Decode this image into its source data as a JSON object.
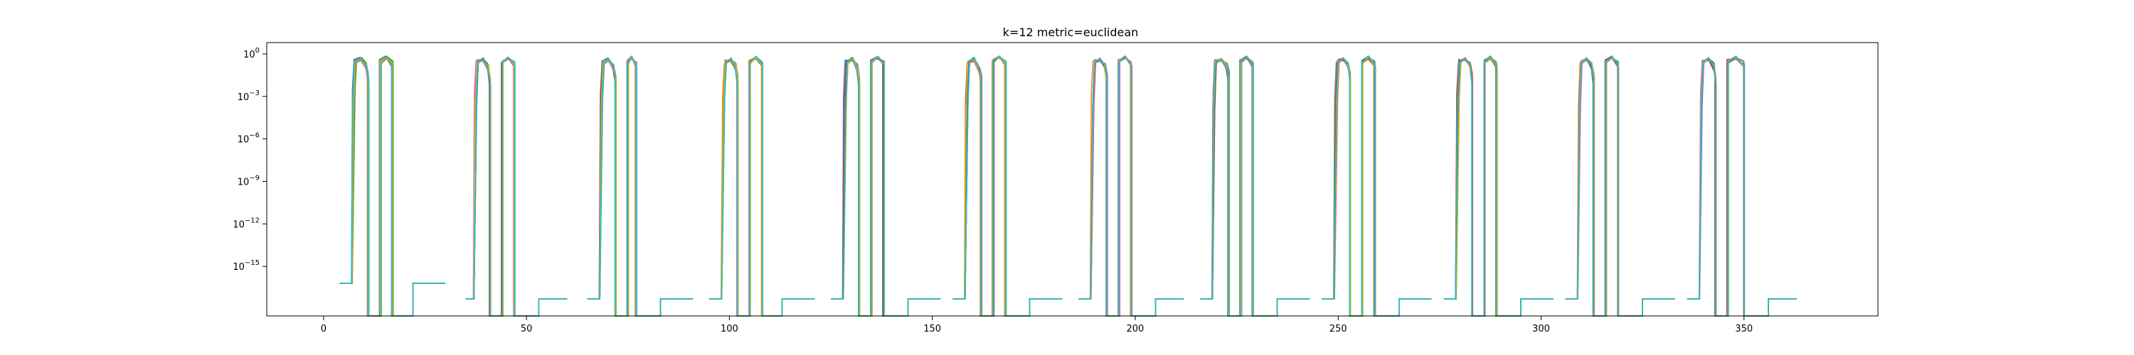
{
  "chart_data": {
    "type": "line",
    "title": "k=12 metric=euclidean",
    "xlabel": "",
    "ylabel": "",
    "xlim": [
      -14,
      383
    ],
    "ylim_log10": [
      -18.5,
      0.8
    ],
    "yscale": "log",
    "grid": false,
    "legend": "none",
    "x_ticks": [
      0,
      50,
      100,
      150,
      200,
      250,
      300,
      350
    ],
    "x_tick_labels": [
      "0",
      "50",
      "100",
      "150",
      "200",
      "250",
      "300",
      "350"
    ],
    "y_ticks_log10": [
      0,
      -3,
      -6,
      -9,
      -12,
      -15
    ],
    "y_tick_labels": [
      {
        "base": "10",
        "exp": "0"
      },
      {
        "base": "10",
        "exp": "−3"
      },
      {
        "base": "10",
        "exp": "−6"
      },
      {
        "base": "10",
        "exp": "−9"
      },
      {
        "base": "10",
        "exp": "−12"
      },
      {
        "base": "10",
        "exp": "−15"
      }
    ],
    "series_colors": [
      "#1f77b4",
      "#ff7f0e",
      "#2ca02c",
      "#d62728",
      "#9467bd",
      "#8c564b",
      "#e377c2",
      "#7f7f7f",
      "#bcbd22",
      "#17becf"
    ],
    "segment_floor_log10": -17.3,
    "first_segment_floor_log10": -16.2,
    "segment_period": 30,
    "segment_count": 12,
    "segments": [
      {
        "pedestal_x": [
          4,
          7
        ],
        "high_block_x": [
          7.5,
          11
        ],
        "high_block_2_x": [
          14,
          17
        ],
        "tail_x": [
          22,
          30
        ]
      },
      {
        "pedestal_x": [
          35,
          37
        ],
        "high_block_x": [
          37.5,
          41
        ],
        "high_block_2_x": [
          44,
          47
        ],
        "tail_x": [
          53,
          60
        ]
      },
      {
        "pedestal_x": [
          65,
          68
        ],
        "high_block_x": [
          68.5,
          72
        ],
        "high_block_2_x": [
          75,
          77
        ],
        "tail_x": [
          83,
          91
        ]
      },
      {
        "pedestal_x": [
          95,
          98
        ],
        "high_block_x": [
          98.5,
          102
        ],
        "high_block_2_x": [
          105,
          108
        ],
        "tail_x": [
          113,
          121
        ]
      },
      {
        "pedestal_x": [
          125,
          128
        ],
        "high_block_x": [
          128.5,
          132
        ],
        "high_block_2_x": [
          135,
          138
        ],
        "tail_x": [
          144,
          152
        ]
      },
      {
        "pedestal_x": [
          155,
          158
        ],
        "high_block_x": [
          158.5,
          162
        ],
        "high_block_2_x": [
          165,
          168
        ],
        "tail_x": [
          174,
          182
        ]
      },
      {
        "pedestal_x": [
          186,
          189
        ],
        "high_block_x": [
          189.5,
          193
        ],
        "high_block_2_x": [
          196,
          199
        ],
        "tail_x": [
          205,
          212
        ]
      },
      {
        "pedestal_x": [
          216,
          219
        ],
        "high_block_x": [
          219.5,
          223
        ],
        "high_block_2_x": [
          226,
          229
        ],
        "tail_x": [
          235,
          243
        ]
      },
      {
        "pedestal_x": [
          246,
          249
        ],
        "high_block_x": [
          249.5,
          253
        ],
        "high_block_2_x": [
          256,
          259
        ],
        "tail_x": [
          265,
          273
        ]
      },
      {
        "pedestal_x": [
          276,
          279
        ],
        "high_block_x": [
          279.5,
          283
        ],
        "high_block_2_x": [
          286,
          289
        ],
        "tail_x": [
          295,
          303
        ]
      },
      {
        "pedestal_x": [
          306,
          309
        ],
        "high_block_x": [
          309.5,
          313
        ],
        "high_block_2_x": [
          316,
          319
        ],
        "tail_x": [
          325,
          333
        ]
      },
      {
        "pedestal_x": [
          336,
          339
        ],
        "high_block_x": [
          339.5,
          343
        ],
        "high_block_2_x": [
          346,
          350
        ],
        "tail_x": [
          356,
          363
        ]
      }
    ]
  }
}
